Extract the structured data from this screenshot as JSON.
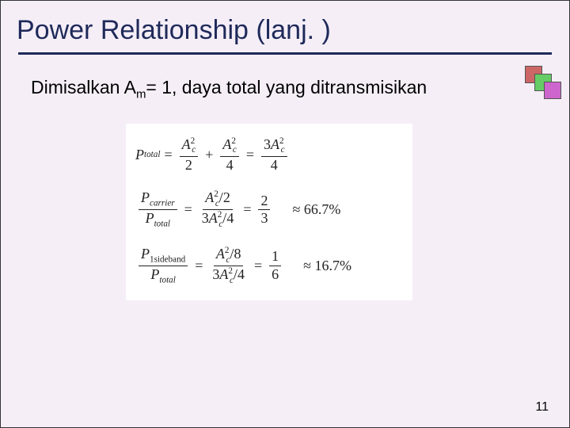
{
  "background_color": "#f5eef7",
  "title": {
    "text": "Power Relationship (lanj. )",
    "color": "#1f2a5a",
    "fontsize": 34
  },
  "rule_color": "#1f2a5a",
  "deco_squares": [
    "#cc6666",
    "#66cc66",
    "#cc66cc"
  ],
  "body": {
    "prefix": "Dimisalkan A",
    "sub": "m",
    "suffix": "= 1, daya total yang ditransmisikan",
    "fontsize": 23
  },
  "equations": {
    "row1": {
      "lhs_sym": "P",
      "lhs_sub": "total",
      "t1_num": "A",
      "t1_num_sup": "2",
      "t1_num_sub": "c",
      "t1_den": "2",
      "t2_num": "A",
      "t2_num_sup": "2",
      "t2_num_sub": "c",
      "t2_den": "4",
      "t3_coeff": "3",
      "t3_num": "A",
      "t3_num_sup": "2",
      "t3_num_sub": "c",
      "t3_den": "4"
    },
    "row2": {
      "lhs_num_sym": "P",
      "lhs_num_sub": "carrier",
      "lhs_den_sym": "P",
      "lhs_den_sub": "total",
      "mid_num": "A",
      "mid_num_sup": "2",
      "mid_num_sub": "c",
      "mid_num_div": "2",
      "mid_den_coeff": "3",
      "mid_den": "A",
      "mid_den_sup": "2",
      "mid_den_sub": "c",
      "mid_den_div": "4",
      "res_num": "2",
      "res_den": "3",
      "approx": "≈ 66.7%"
    },
    "row3": {
      "lhs_num_sym": "P",
      "lhs_num_sub": "1sideband",
      "lhs_den_sym": "P",
      "lhs_den_sub": "total",
      "mid_num": "A",
      "mid_num_sup": "2",
      "mid_num_sub": "c",
      "mid_num_div": "8",
      "mid_den_coeff": "3",
      "mid_den": "A",
      "mid_den_sup": "2",
      "mid_den_sub": "c",
      "mid_den_div": "4",
      "res_num": "1",
      "res_den": "6",
      "approx": "≈ 16.7%"
    }
  },
  "page_number": "11"
}
